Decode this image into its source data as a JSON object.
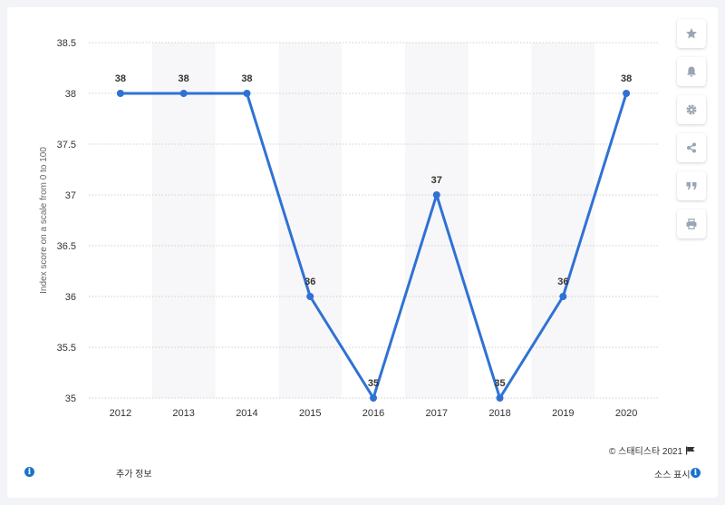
{
  "chart_data": {
    "type": "line",
    "categories": [
      "2012",
      "2013",
      "2014",
      "2015",
      "2016",
      "2017",
      "2018",
      "2019",
      "2020"
    ],
    "series": [
      {
        "values": [
          38,
          38,
          38,
          36,
          35,
          37,
          35,
          36,
          38
        ],
        "labels": [
          "38",
          "38",
          "38",
          "36",
          "35",
          "37",
          "35",
          "36",
          "38"
        ]
      }
    ],
    "title": "",
    "xlabel": "",
    "ylabel": "Index score on a scale from 0 to 100",
    "ylim": [
      35,
      38.5
    ],
    "yticks": [
      "35",
      "35.5",
      "36",
      "36.5",
      "37",
      "37.5",
      "38",
      "38.5"
    ],
    "grid": "horizontal dotted",
    "alternating_column_bands": true,
    "colors": {
      "line": "#2f72d4",
      "band": "#f7f7f9",
      "grid": "#cfcfcf"
    }
  },
  "toolbar": {
    "icons": [
      "star-icon",
      "bell-icon",
      "gear-icon",
      "share-icon",
      "quote-icon",
      "print-icon"
    ]
  },
  "footer": {
    "copyright": "©  스태티스타 2021",
    "more_info": "추가 정보",
    "show_source": "소스 표시"
  }
}
